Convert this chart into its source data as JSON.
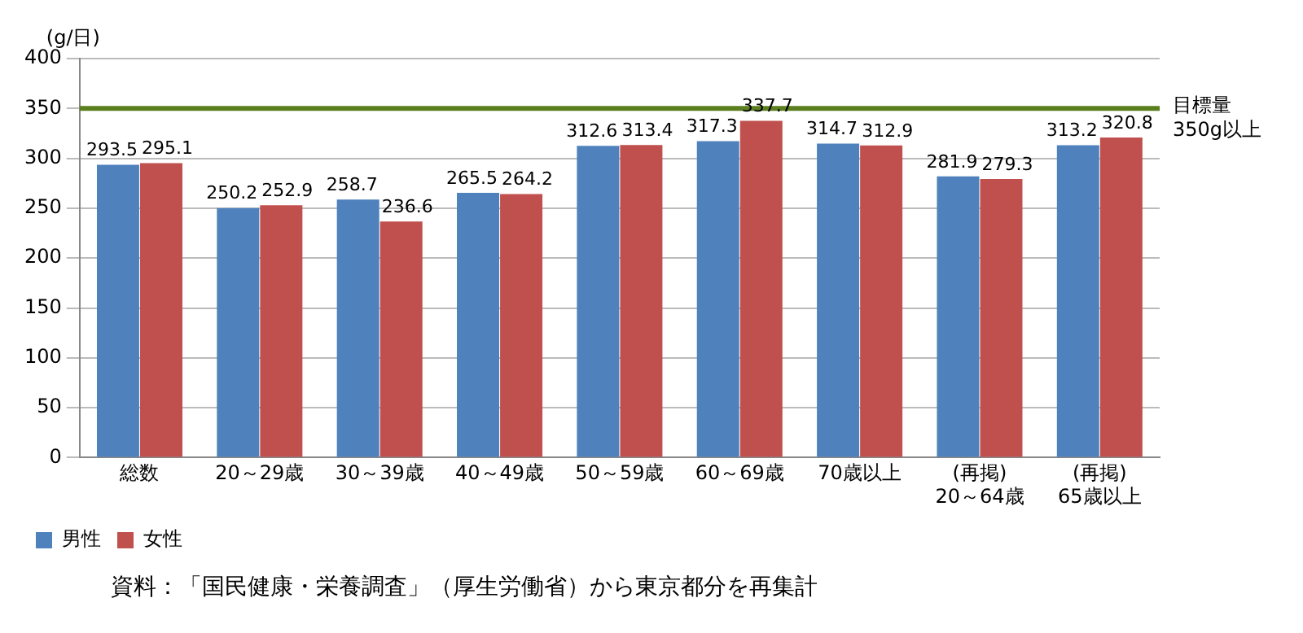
{
  "chart_data": {
    "type": "bar",
    "ylabel": "(g/日)",
    "categories": [
      "総数",
      "20～29歳",
      "30～39歳",
      "40～49歳",
      "50～59歳",
      "60～69歳",
      "70歳以上",
      "(再掲)\n20～64歳",
      "(再掲)\n65歳以上"
    ],
    "series": [
      {
        "name": "男性",
        "color": "#4f81bd",
        "values": [
          293.5,
          250.2,
          258.7,
          265.5,
          312.6,
          317.3,
          314.7,
          281.9,
          313.2
        ]
      },
      {
        "name": "女性",
        "color": "#c0504d",
        "values": [
          295.1,
          252.9,
          236.6,
          264.2,
          313.4,
          337.7,
          312.9,
          279.3,
          320.8
        ]
      }
    ],
    "ylim": [
      0,
      400
    ],
    "yticks": [
      0,
      50,
      100,
      150,
      200,
      250,
      300,
      350,
      400
    ],
    "grid": "y",
    "legend": "bottom left",
    "data_labels": true,
    "ref_lines": [
      {
        "axis": "y",
        "value": 350,
        "label": "目標量\n350g以上",
        "color": "#5b7f1f"
      }
    ],
    "annotations": [
      "資料：「国民健康・栄養調査」（厚生労働省）から東京都分を再集計"
    ]
  }
}
